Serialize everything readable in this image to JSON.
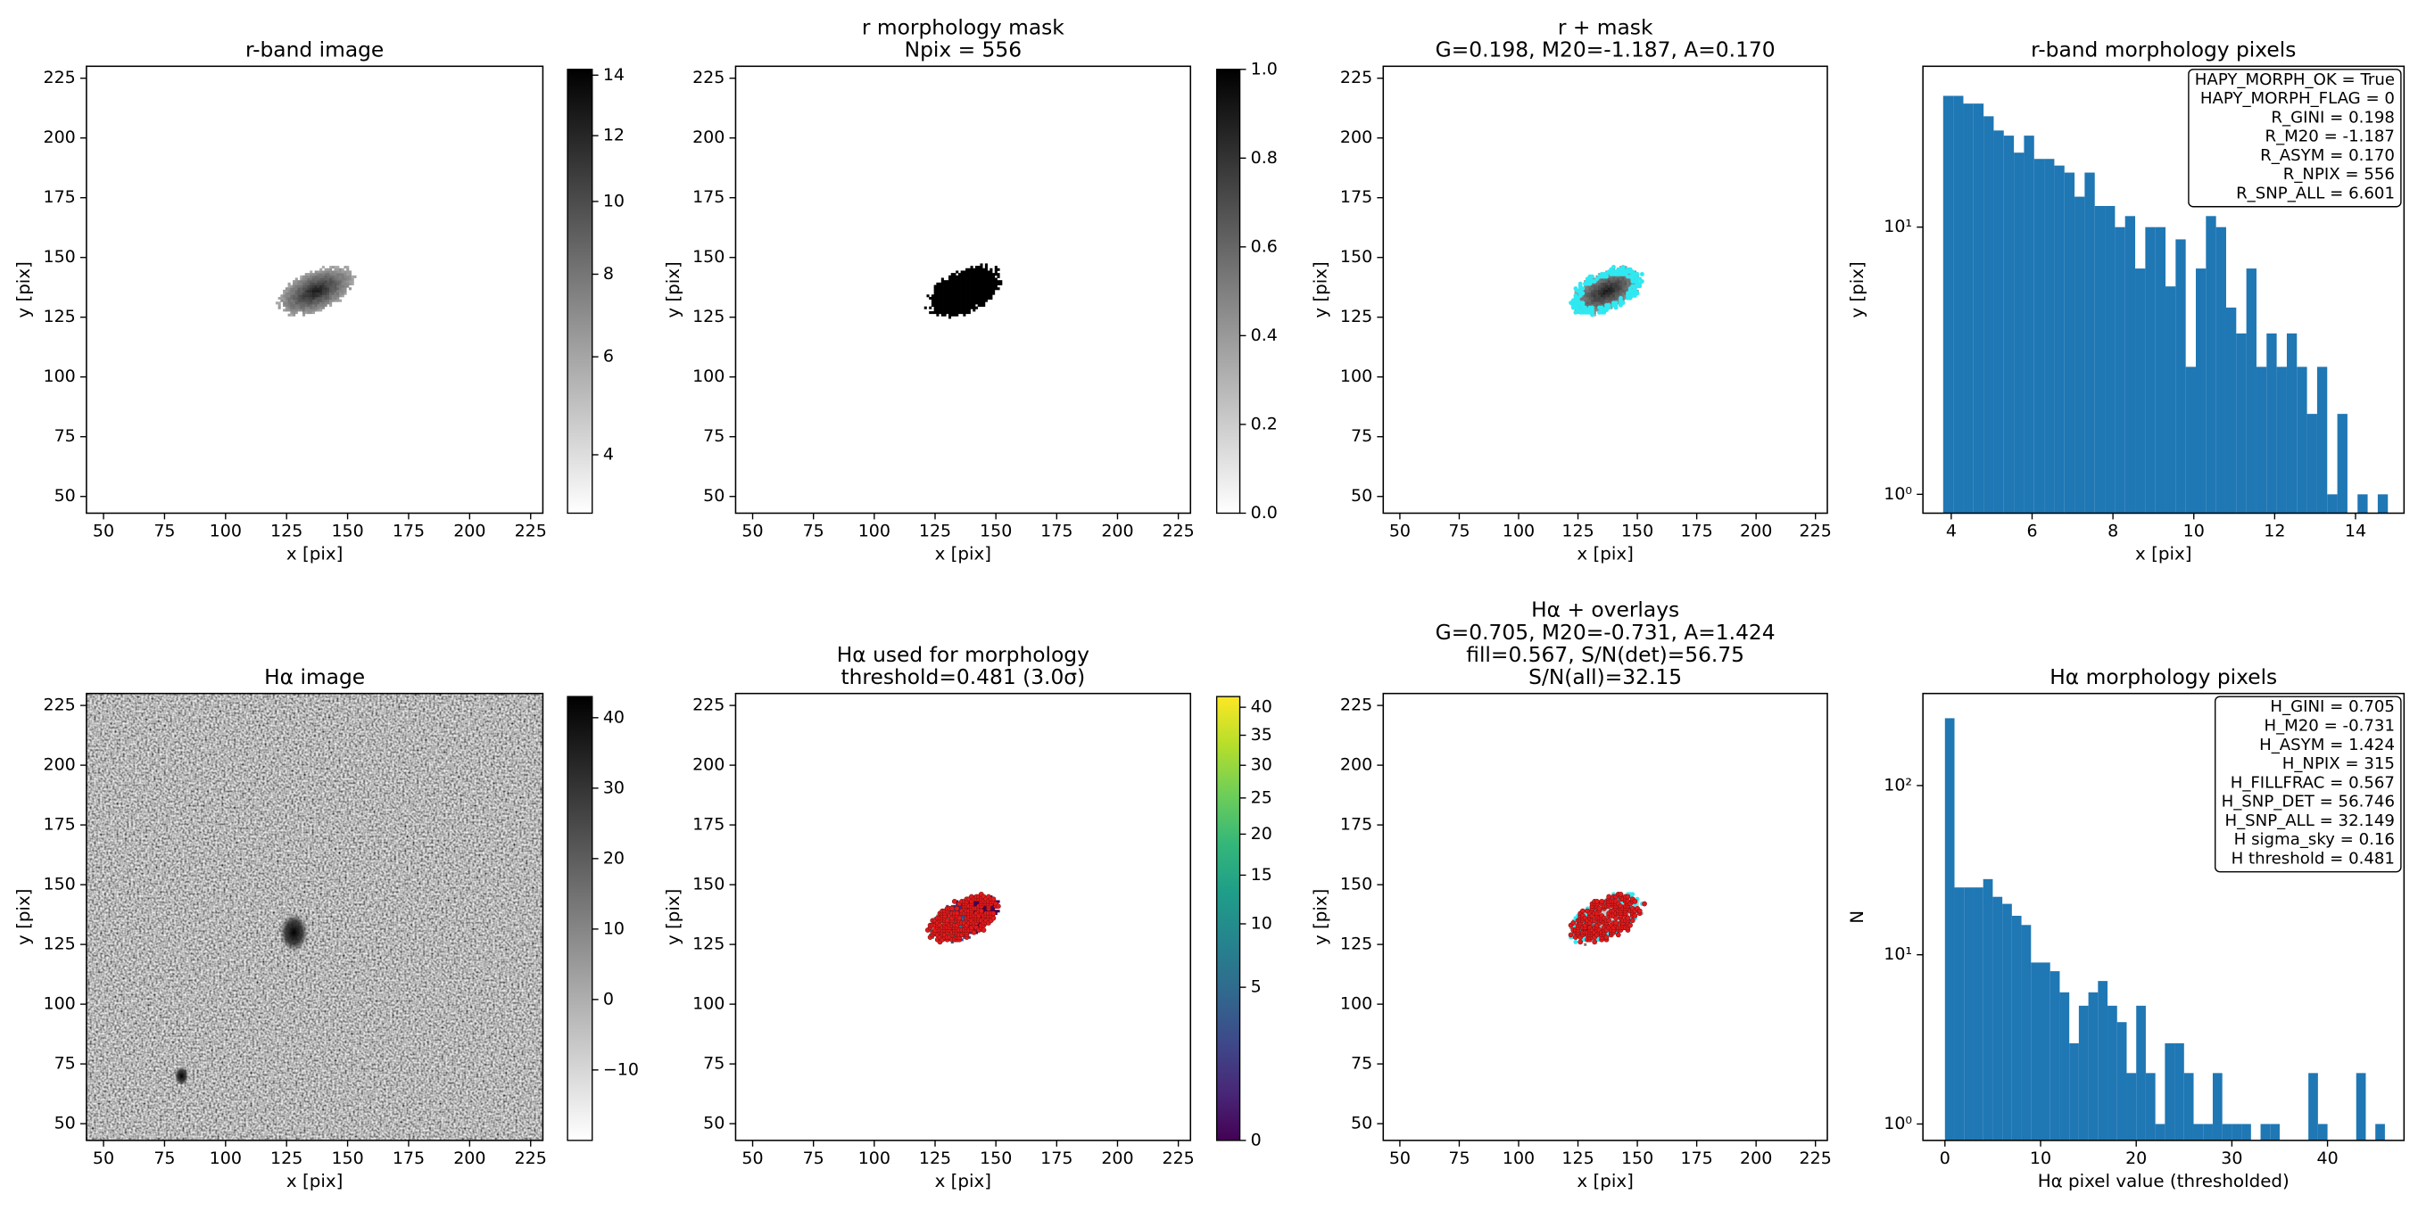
{
  "chart_data": [
    {
      "type": "image",
      "title": [
        "r-band image"
      ],
      "xlabel": "x [pix]",
      "ylabel": "y [pix]",
      "xlim": [
        43,
        230
      ],
      "ylim": [
        43,
        230
      ],
      "xticks": [
        50,
        75,
        100,
        125,
        150,
        175,
        200,
        225
      ],
      "yticks": [
        50,
        75,
        100,
        125,
        150,
        175,
        200,
        225
      ],
      "colorbar": {
        "cmap": "gray_r",
        "scale": "sqrt",
        "lim": [
          3,
          14.2
        ],
        "ticks": [
          4,
          6,
          8,
          10,
          12,
          14
        ]
      }
    },
    {
      "type": "image",
      "title": [
        "r morphology mask",
        "Npix = 556"
      ],
      "xlabel": "x [pix]",
      "ylabel": "y [pix]",
      "xlim": [
        43,
        230
      ],
      "ylim": [
        43,
        230
      ],
      "xticks": [
        50,
        75,
        100,
        125,
        150,
        175,
        200,
        225
      ],
      "yticks": [
        50,
        75,
        100,
        125,
        150,
        175,
        200,
        225
      ],
      "colorbar": {
        "cmap": "gray_r",
        "scale": "linear",
        "lim": [
          0,
          1
        ],
        "ticks": [
          {
            "value": 0,
            "label": "0.0"
          },
          0.2,
          0.4,
          0.6,
          0.8,
          {
            "value": 1,
            "label": "1.0"
          }
        ]
      }
    },
    {
      "type": "image",
      "title": [
        "r + mask",
        "G=0.198, M20=-1.187, A=0.170"
      ],
      "xlabel": "x [pix]",
      "ylabel": "y [pix]",
      "xlim": [
        43,
        230
      ],
      "ylim": [
        43,
        230
      ],
      "xticks": [
        50,
        75,
        100,
        125,
        150,
        175,
        200,
        225
      ],
      "yticks": [
        50,
        75,
        100,
        125,
        150,
        175,
        200,
        225
      ]
    },
    {
      "type": "histogram",
      "title": [
        "r-band morphology pixels"
      ],
      "xlabel": "x [pix]",
      "ylabel": "y [pix]",
      "color": "#1f77b4",
      "log_y": true,
      "bins": [
        3.8,
        4.05,
        4.3,
        4.55,
        4.8,
        5.05,
        5.3,
        5.55,
        5.8,
        6.05,
        6.3,
        6.55,
        6.8,
        7.05,
        7.3,
        7.55,
        7.8,
        8.05,
        8.3,
        8.55,
        8.8,
        9.05,
        9.3,
        9.55,
        9.8,
        10.05,
        10.3,
        10.55,
        10.8,
        11.05,
        11.3,
        11.55,
        11.8,
        12.05,
        12.3,
        12.55,
        12.8,
        13.05,
        13.3,
        13.55,
        13.8,
        14.05,
        14.3,
        14.55,
        14.8
      ],
      "counts": [
        31,
        31,
        29,
        29,
        26,
        23,
        22,
        19,
        22,
        18,
        18,
        17,
        16,
        13,
        16,
        12,
        12,
        10,
        11,
        7,
        10,
        10,
        6,
        9,
        3,
        7,
        11,
        10,
        5,
        4,
        7,
        3,
        4,
        3,
        4,
        3,
        2,
        3,
        1,
        2,
        0,
        1,
        0,
        1
      ],
      "xlim": [
        3.3,
        15.2
      ],
      "ylim": [
        0.85,
        40
      ],
      "xticks": [
        4,
        6,
        8,
        10,
        12,
        14
      ],
      "yticks": [
        {
          "value": 1,
          "label": "10⁰"
        },
        {
          "value": 10,
          "label": "10¹"
        }
      ],
      "annotation": [
        "HAPY_MORPH_OK = True",
        "HAPY_MORPH_FLAG = 0",
        "R_GINI = 0.198",
        "R_M20 = -1.187",
        "R_ASYM = 0.170",
        "R_NPIX = 556",
        "R_SNP_ALL = 6.601"
      ]
    },
    {
      "type": "image",
      "title": [
        "Hα image"
      ],
      "xlabel": "x [pix]",
      "ylabel": "y [pix]",
      "xlim": [
        43,
        230
      ],
      "ylim": [
        43,
        230
      ],
      "xticks": [
        50,
        75,
        100,
        125,
        150,
        175,
        200,
        225
      ],
      "yticks": [
        50,
        75,
        100,
        125,
        150,
        175,
        200,
        225
      ],
      "colorbar": {
        "cmap": "gray_r",
        "scale": "linear",
        "lim": [
          -20,
          43
        ],
        "ticks": [
          {
            "value": -10,
            "label": "−10"
          },
          0,
          10,
          20,
          30,
          40
        ]
      }
    },
    {
      "type": "image",
      "title": [
        "Hα used for morphology",
        "threshold=0.481 (3.0σ)"
      ],
      "xlabel": "x [pix]",
      "ylabel": "y [pix]",
      "xlim": [
        43,
        230
      ],
      "ylim": [
        43,
        230
      ],
      "xticks": [
        50,
        75,
        100,
        125,
        150,
        175,
        200,
        225
      ],
      "yticks": [
        50,
        75,
        100,
        125,
        150,
        175,
        200,
        225
      ],
      "colorbar": {
        "cmap": "viridis",
        "scale": "sqrt",
        "lim": [
          0,
          42
        ],
        "ticks": [
          0,
          5,
          10,
          15,
          20,
          25,
          30,
          35,
          40
        ]
      }
    },
    {
      "type": "image",
      "title": [
        "Hα + overlays",
        "G=0.705, M20=-0.731, A=1.424",
        "fill=0.567, S/N(det)=56.75",
        "S/N(all)=32.15"
      ],
      "xlabel": "x [pix]",
      "ylabel": "y [pix]",
      "xlim": [
        43,
        230
      ],
      "ylim": [
        43,
        230
      ],
      "xticks": [
        50,
        75,
        100,
        125,
        150,
        175,
        200,
        225
      ],
      "yticks": [
        50,
        75,
        100,
        125,
        150,
        175,
        200,
        225
      ]
    },
    {
      "type": "histogram",
      "title": [
        "Hα morphology pixels"
      ],
      "xlabel": "Hα pixel value (thresholded)",
      "ylabel": "N",
      "color": "#1f77b4",
      "log_y": true,
      "bins": [
        0,
        1,
        2,
        3,
        4,
        5,
        6,
        7,
        8,
        9,
        10,
        11,
        12,
        13,
        14,
        15,
        16,
        17,
        18,
        19,
        20,
        21,
        22,
        23,
        24,
        25,
        26,
        27,
        28,
        29,
        30,
        31,
        32,
        33,
        34,
        35,
        36,
        37,
        38,
        39,
        40,
        41,
        42,
        43,
        44,
        45,
        46
      ],
      "counts": [
        250,
        25,
        25,
        25,
        28,
        22,
        20,
        17,
        15,
        9,
        9,
        8,
        6,
        3,
        5,
        6,
        7,
        5,
        4,
        2,
        5,
        2,
        1,
        3,
        3,
        2,
        1,
        1,
        2,
        1,
        1,
        1,
        0,
        1,
        1,
        0,
        0,
        0,
        2,
        1,
        0,
        0,
        0,
        2,
        0,
        1
      ],
      "xlim": [
        -2.3,
        48
      ],
      "ylim": [
        0.8,
        350
      ],
      "xticks": [
        0,
        10,
        20,
        30,
        40
      ],
      "yticks": [
        {
          "value": 1,
          "label": "10⁰"
        },
        {
          "value": 10,
          "label": "10¹"
        },
        {
          "value": 100,
          "label": "10²"
        }
      ],
      "annotation": [
        "H_GINI = 0.705",
        "H_M20 = -0.731",
        "H_ASYM = 1.424",
        "H_NPIX = 315",
        "H_FILLFRAC = 0.567",
        "H_SNP_DET = 56.746",
        "H_SNP_ALL = 32.149",
        "H sigma_sky = 0.16",
        "H threshold = 0.481"
      ]
    }
  ]
}
